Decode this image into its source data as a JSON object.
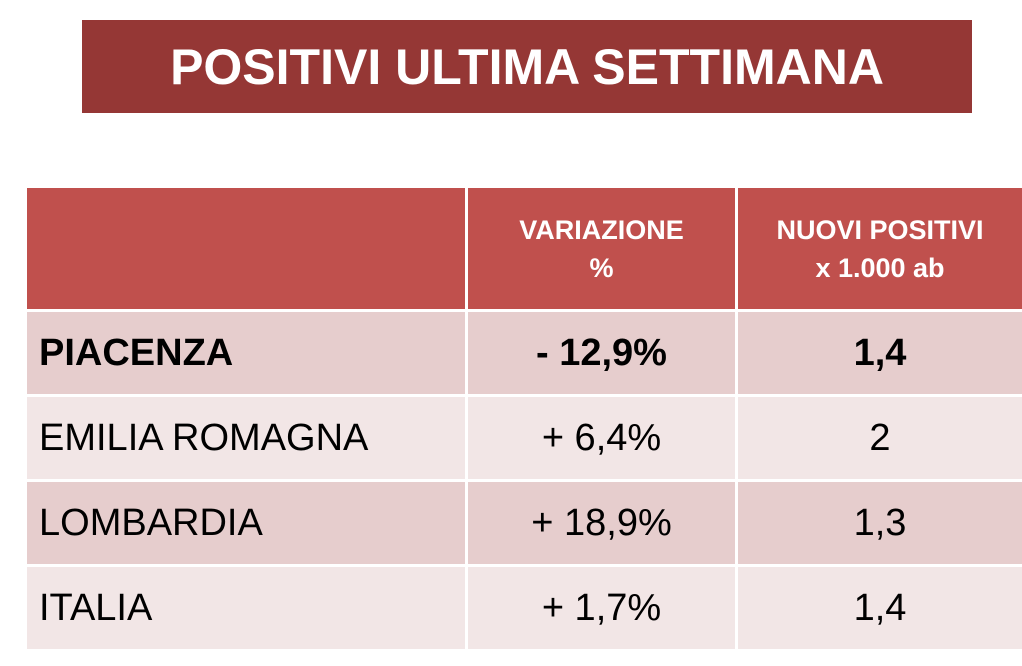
{
  "title": "POSITIVI ULTIMA SETTIMANA",
  "table": {
    "header": [
      [
        "VARIAZIONE",
        "%"
      ],
      [
        "NUOVI POSITIVI",
        "x 1.000 ab"
      ]
    ],
    "rows": [
      [
        "PIACENZA",
        "- 12,9%",
        "1,4"
      ],
      [
        "EMILIA ROMAGNA",
        "+ 6,4%",
        "2"
      ],
      [
        "LOMBARDIA",
        "+ 18,9%",
        "1,3"
      ],
      [
        "ITALIA",
        "+ 1,7%",
        "1,4"
      ]
    ]
  }
}
